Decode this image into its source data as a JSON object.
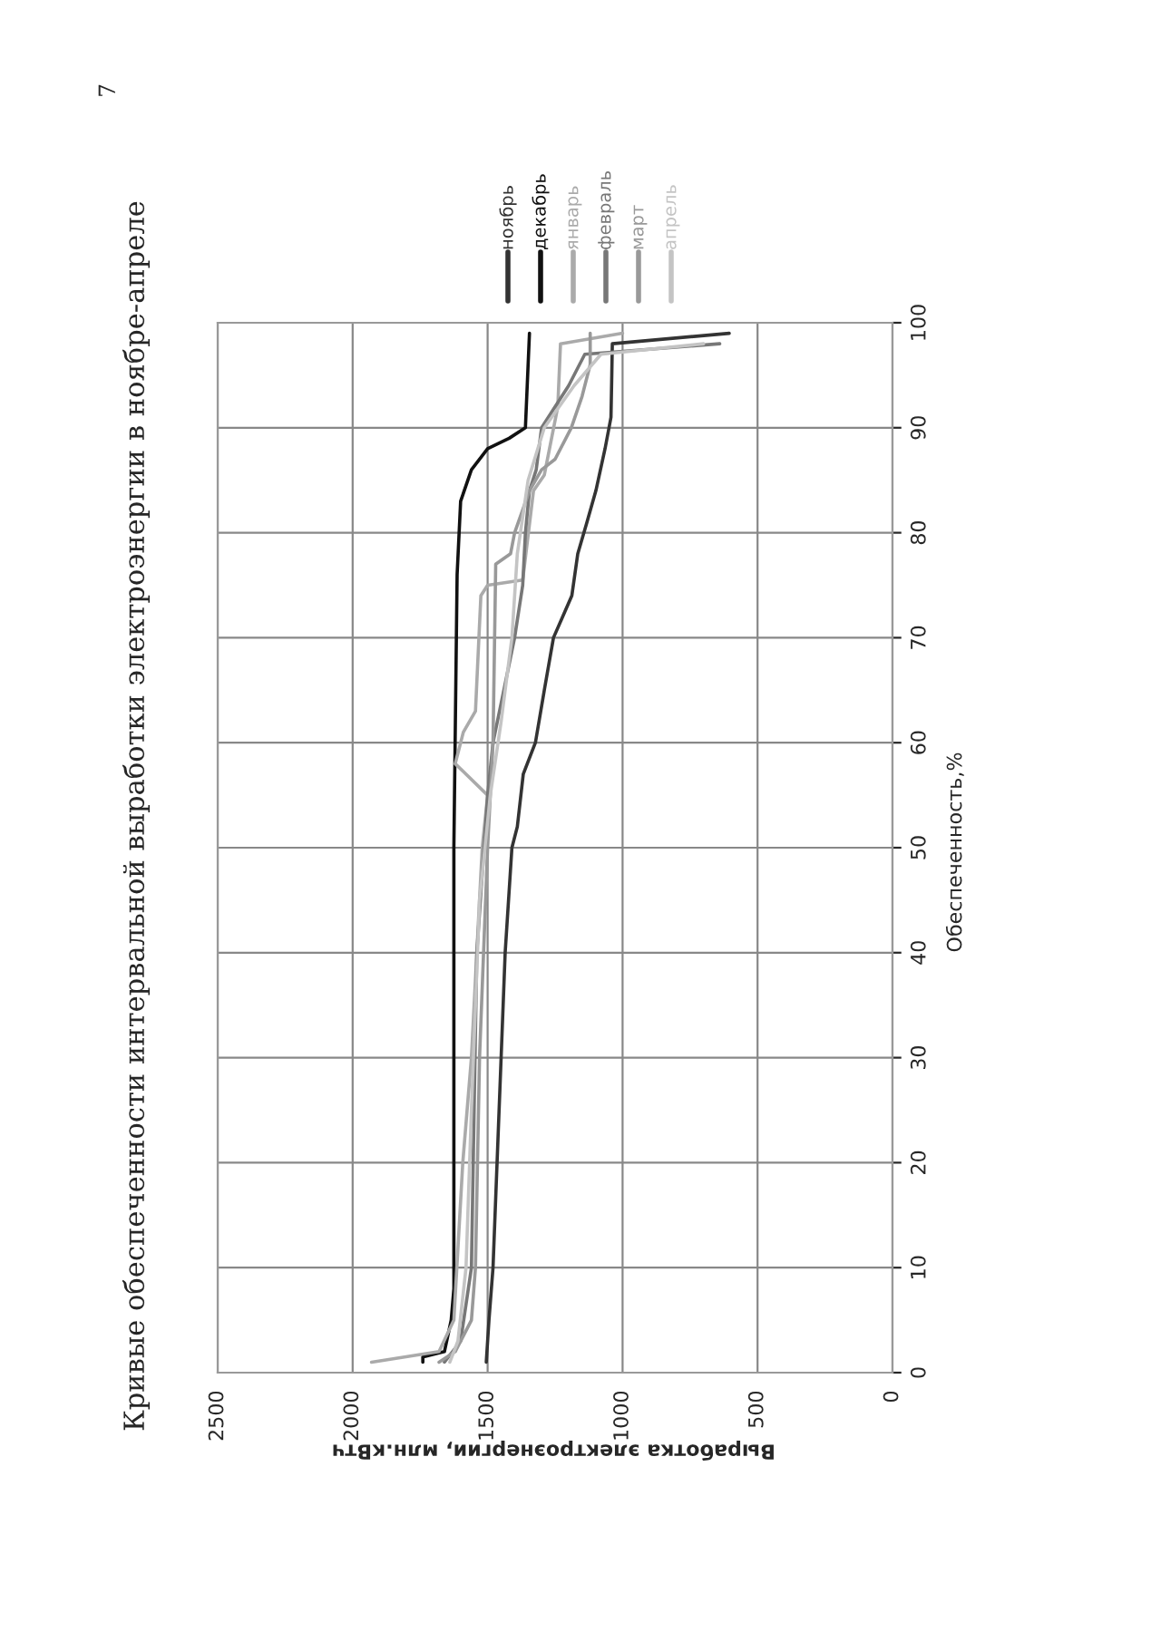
{
  "chart_data": {
    "type": "line",
    "title": "Кривые обеспеченности интервальной выработки электроэнергии в ноябре-апреле",
    "xlabel": "Выработка электроэнергии, млн.кВтч",
    "ylabel": "Обеспеченность,%",
    "annotations": [
      "7"
    ],
    "xlim": [
      2500,
      0
    ],
    "xticks": [
      0,
      500,
      1000,
      1500,
      2000,
      2500
    ],
    "ylim": [
      0,
      100
    ],
    "yticks": [
      0,
      10,
      20,
      30,
      40,
      50,
      60,
      70,
      80,
      90,
      100
    ],
    "grid": true,
    "legend": "top right",
    "marker": "none",
    "line_style": "solid",
    "series": [
      {
        "name": "ноябрь",
        "color": "#333333",
        "values": [
          1,
          5,
          10,
          20,
          40,
          50,
          52,
          57,
          60,
          65,
          70,
          72,
          74,
          78,
          81,
          84,
          88,
          91,
          95,
          98,
          99
        ],
        "x": [
          1505,
          1495,
          1480,
          1465,
          1435,
          1410,
          1390,
          1368,
          1323,
          1290,
          1256,
          1222,
          1188,
          1166,
          1132,
          1099,
          1065,
          1043,
          1040,
          1038,
          605
        ]
      },
      {
        "name": "декабрь",
        "color": "#111111",
        "values": [
          1,
          1.5,
          2,
          5,
          8,
          15,
          50,
          76,
          83,
          86,
          88,
          89,
          90,
          99
        ],
        "x": [
          1740,
          1740,
          1660,
          1635,
          1625,
          1625,
          1625,
          1613,
          1600,
          1560,
          1500,
          1420,
          1360,
          1345
        ]
      },
      {
        "name": "январь",
        "color": "#aaaaaa",
        "values": [
          1,
          2,
          5,
          20,
          30,
          40,
          50,
          55,
          58,
          61,
          63,
          74,
          75,
          75.5,
          84,
          85.5,
          92,
          98,
          99
        ],
        "x": [
          1930,
          1680,
          1625,
          1592,
          1560,
          1540,
          1520,
          1500,
          1620,
          1590,
          1545,
          1525,
          1500,
          1370,
          1330,
          1290,
          1240,
          1230,
          1000
        ]
      },
      {
        "name": "февраль",
        "color": "#777777",
        "values": [
          1,
          3,
          10,
          40,
          55,
          60,
          65,
          70,
          75,
          80,
          84,
          86,
          90,
          94,
          97,
          98
        ],
        "x": [
          1660,
          1600,
          1560,
          1540,
          1500,
          1480,
          1440,
          1400,
          1370,
          1360,
          1345,
          1320,
          1300,
          1200,
          1140,
          640
        ]
      },
      {
        "name": "март",
        "color": "#999999",
        "values": [
          1,
          2,
          5,
          10,
          30,
          50,
          60,
          77,
          78,
          80,
          84,
          86,
          87,
          90,
          93,
          96,
          99
        ],
        "x": [
          1680,
          1620,
          1560,
          1545,
          1530,
          1500,
          1480,
          1470,
          1415,
          1400,
          1345,
          1300,
          1250,
          1190,
          1150,
          1120,
          1120
        ]
      },
      {
        "name": "апрель",
        "color": "#c4c4c4",
        "values": [
          1,
          3,
          10,
          25,
          45,
          55,
          62,
          70,
          78,
          85,
          90,
          94,
          97,
          98
        ],
        "x": [
          1640,
          1610,
          1580,
          1560,
          1530,
          1490,
          1450,
          1410,
          1390,
          1350,
          1290,
          1180,
          1080,
          700
        ]
      }
    ]
  }
}
